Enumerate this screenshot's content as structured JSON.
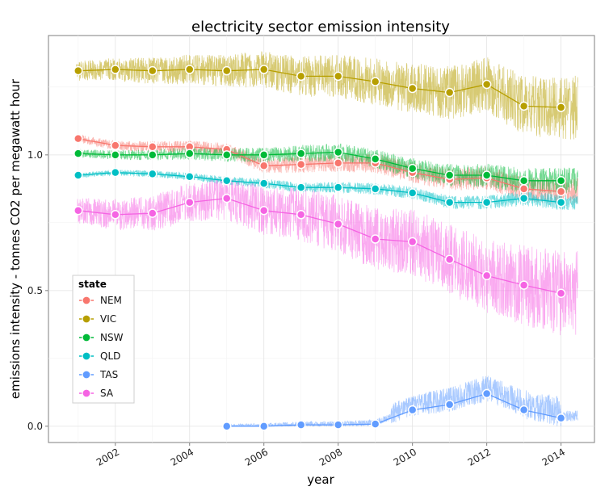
{
  "chart_data": {
    "type": "line",
    "title": "electricity sector emission intensity",
    "xlabel": "year",
    "ylabel": "emissions intensity - tonnes CO2 per megawatt hour",
    "xlim": [
      2000.2,
      2014.9
    ],
    "ylim": [
      -0.06,
      1.44
    ],
    "x_ticks": [
      2002,
      2004,
      2006,
      2008,
      2010,
      2012,
      2014
    ],
    "x_tick_labels": [
      "2002",
      "2004",
      "2006",
      "2008",
      "2010",
      "2012",
      "2014"
    ],
    "y_ticks": [
      0.0,
      0.5,
      1.0
    ],
    "y_tick_labels": [
      "0.0",
      "0.5",
      "1.0"
    ],
    "grid": true,
    "legend": {
      "title": "state",
      "position": "bottom-left"
    },
    "series": [
      {
        "name": "NEM",
        "color": "#F8766D",
        "noise": 0.025,
        "annual": {
          "x": [
            2001,
            2002,
            2003,
            2004,
            2005,
            2006,
            2007,
            2008,
            2009,
            2010,
            2011,
            2012,
            2013,
            2014
          ],
          "y": [
            1.06,
            1.035,
            1.03,
            1.03,
            1.02,
            0.96,
            0.965,
            0.97,
            0.97,
            0.935,
            0.91,
            0.915,
            0.875,
            0.865
          ]
        }
      },
      {
        "name": "VIC",
        "color": "#B79F00",
        "noise": 0.06,
        "annual": {
          "x": [
            2001,
            2002,
            2003,
            2004,
            2005,
            2006,
            2007,
            2008,
            2009,
            2010,
            2011,
            2012,
            2013,
            2014
          ],
          "y": [
            1.31,
            1.315,
            1.31,
            1.315,
            1.31,
            1.315,
            1.29,
            1.29,
            1.27,
            1.245,
            1.23,
            1.26,
            1.18,
            1.175
          ]
        }
      },
      {
        "name": "NSW",
        "color": "#00BA38",
        "noise": 0.025,
        "annual": {
          "x": [
            2001,
            2002,
            2003,
            2004,
            2005,
            2006,
            2007,
            2008,
            2009,
            2010,
            2011,
            2012,
            2013,
            2014
          ],
          "y": [
            1.005,
            1.0,
            1.0,
            1.005,
            1.0,
            1.0,
            1.005,
            1.01,
            0.985,
            0.95,
            0.925,
            0.925,
            0.905,
            0.905
          ]
        }
      },
      {
        "name": "QLD",
        "color": "#00BFC4",
        "noise": 0.015,
        "annual": {
          "x": [
            2001,
            2002,
            2003,
            2004,
            2005,
            2006,
            2007,
            2008,
            2009,
            2010,
            2011,
            2012,
            2013,
            2014
          ],
          "y": [
            0.925,
            0.935,
            0.93,
            0.92,
            0.905,
            0.895,
            0.88,
            0.88,
            0.875,
            0.86,
            0.825,
            0.825,
            0.84,
            0.825
          ]
        }
      },
      {
        "name": "TAS",
        "color": "#619CFF",
        "noise": 0.02,
        "annual": {
          "x": [
            2005,
            2006,
            2007,
            2008,
            2009,
            2010,
            2011,
            2012,
            2013,
            2014
          ],
          "y": [
            0.0,
            0.0,
            0.005,
            0.005,
            0.008,
            0.06,
            0.08,
            0.12,
            0.06,
            0.03
          ]
        }
      },
      {
        "name": "SA",
        "color": "#F564E3",
        "noise": 0.08,
        "annual": {
          "x": [
            2001,
            2002,
            2003,
            2004,
            2005,
            2006,
            2007,
            2008,
            2009,
            2010,
            2011,
            2012,
            2013,
            2014
          ],
          "y": [
            0.795,
            0.78,
            0.785,
            0.825,
            0.84,
            0.795,
            0.78,
            0.745,
            0.69,
            0.68,
            0.615,
            0.555,
            0.52,
            0.49
          ]
        }
      }
    ]
  }
}
